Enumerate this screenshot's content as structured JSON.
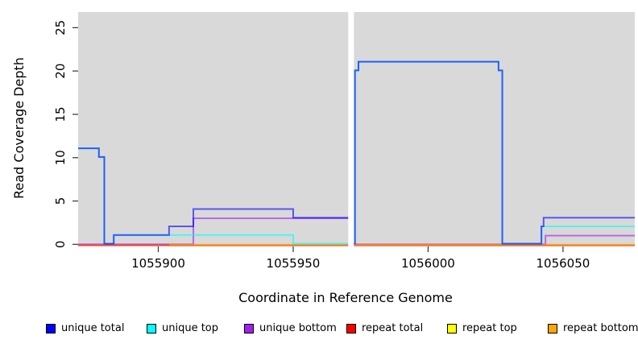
{
  "chart_data": {
    "type": "line",
    "subtype": "step-coverage",
    "title": "",
    "xlabel": "Coordinate in Reference Genome",
    "ylabel": "Read Coverage Depth",
    "xlim": [
      1055870.3,
      1056076.6
    ],
    "ylim": [
      -0.25,
      26.8
    ],
    "x_ticks": [
      {
        "value": 1055900,
        "label": "1055900"
      },
      {
        "value": 1055950,
        "label": "1055950"
      },
      {
        "value": 1056000,
        "label": "1056000"
      },
      {
        "value": 1056050,
        "label": "1056050"
      }
    ],
    "y_ticks": [
      {
        "value": 0,
        "label": "0"
      },
      {
        "value": 5,
        "label": "5"
      },
      {
        "value": 10,
        "label": "10"
      },
      {
        "value": 15,
        "label": "15"
      },
      {
        "value": 20,
        "label": "20"
      },
      {
        "value": 25,
        "label": "25"
      }
    ],
    "panel_background": "#d9d9d9",
    "no_data_gap": {
      "from": 1055970.4,
      "to": 1055972.5,
      "color": "#ffffff"
    },
    "line_opacity": 0.6,
    "line_width": 2,
    "series_draw_order": [
      {
        "name": "repeat top",
        "color": "#ffff00",
        "steps": [
          [
            1055870.3,
            0
          ],
          [
            1056076.6,
            0
          ]
        ]
      },
      {
        "name": "unique bottom",
        "color": "#a020f0",
        "steps": [
          [
            1055870.3,
            0
          ],
          [
            1055913,
            3
          ],
          [
            1055971,
            0
          ],
          [
            1056043.5,
            1
          ],
          [
            1056076.6,
            1
          ]
        ]
      },
      {
        "name": "repeat total",
        "color": "#ff0000",
        "steps": [
          [
            1055870.3,
            0
          ],
          [
            1056076.6,
            0
          ]
        ]
      },
      {
        "name": "repeat bottom",
        "color": "#ffa500",
        "steps": [
          [
            1055904,
            0
          ],
          [
            1056076.6,
            0
          ]
        ]
      },
      {
        "name": "unique top",
        "color": "#00ffff",
        "steps": [
          [
            1055870.3,
            11
          ],
          [
            1055878,
            10
          ],
          [
            1055880,
            0
          ],
          [
            1055883.5,
            1
          ],
          [
            1055950,
            0
          ],
          [
            1055972.9,
            20
          ],
          [
            1055974.2,
            21
          ],
          [
            1056026.1,
            20
          ],
          [
            1056027.5,
            0
          ],
          [
            1056042,
            2
          ],
          [
            1056076.6,
            2
          ]
        ]
      },
      {
        "name": "unique total",
        "color": "#0000ff",
        "steps": [
          [
            1055870.3,
            11
          ],
          [
            1055878,
            10
          ],
          [
            1055880,
            0
          ],
          [
            1055883.5,
            1
          ],
          [
            1055904,
            2
          ],
          [
            1055913,
            4
          ],
          [
            1055950,
            3
          ],
          [
            1055971,
            0
          ],
          [
            1055972.9,
            20
          ],
          [
            1055974.2,
            21
          ],
          [
            1056026.1,
            20
          ],
          [
            1056027.5,
            0
          ],
          [
            1056042,
            2
          ],
          [
            1056042.8,
            3
          ],
          [
            1056076.6,
            3
          ]
        ]
      }
    ],
    "legend": [
      {
        "label": "unique total",
        "color": "#0000ff"
      },
      {
        "label": "unique top",
        "color": "#00ffff"
      },
      {
        "label": "unique bottom",
        "color": "#a020f0"
      },
      {
        "label": "repeat total",
        "color": "#ff0000"
      },
      {
        "label": "repeat top",
        "color": "#ffff00"
      },
      {
        "label": "repeat bottom",
        "color": "#ffa500"
      }
    ]
  }
}
